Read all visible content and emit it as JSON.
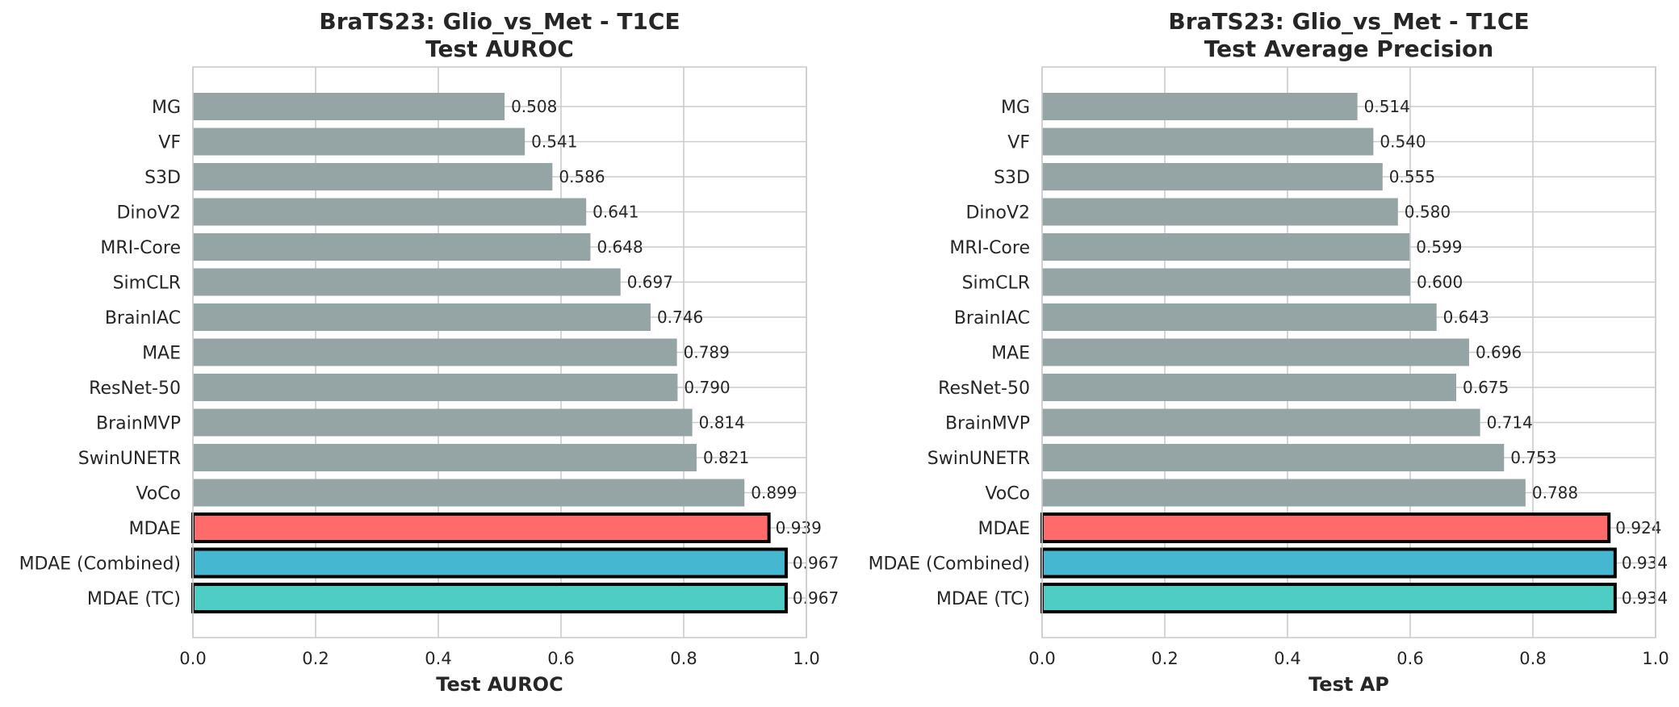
{
  "chart_data": [
    {
      "type": "bar",
      "orientation": "horizontal",
      "title": "BraTS23: Glio_vs_Met - T1CE",
      "subtitle": "Test AUROC",
      "xlabel": "Test AUROC",
      "ylabel": "",
      "xlim": [
        0.0,
        1.0
      ],
      "xticks": [
        "0.0",
        "0.2",
        "0.4",
        "0.6",
        "0.8",
        "1.0"
      ],
      "grid": true,
      "categories": [
        "MG",
        "VF",
        "S3D",
        "DinoV2",
        "MRI-Core",
        "SimCLR",
        "BrainIAC",
        "MAE",
        "ResNet-50",
        "BrainMVP",
        "SwinUNETR",
        "VoCo",
        "MDAE",
        "MDAE (Combined)",
        "MDAE (TC)"
      ],
      "values": [
        0.508,
        0.541,
        0.586,
        0.641,
        0.648,
        0.697,
        0.746,
        0.789,
        0.79,
        0.814,
        0.821,
        0.899,
        0.939,
        0.967,
        0.967
      ],
      "value_labels": [
        "0.508",
        "0.541",
        "0.586",
        "0.641",
        "0.648",
        "0.697",
        "0.746",
        "0.789",
        "0.790",
        "0.814",
        "0.821",
        "0.899",
        "0.939",
        "0.967",
        "0.967"
      ]
    },
    {
      "type": "bar",
      "orientation": "horizontal",
      "title": "BraTS23: Glio_vs_Met - T1CE",
      "subtitle": "Test Average Precision",
      "xlabel": "Test AP",
      "ylabel": "",
      "xlim": [
        0.0,
        1.0
      ],
      "xticks": [
        "0.0",
        "0.2",
        "0.4",
        "0.6",
        "0.8",
        "1.0"
      ],
      "grid": true,
      "categories": [
        "MG",
        "VF",
        "S3D",
        "DinoV2",
        "MRI-Core",
        "SimCLR",
        "BrainIAC",
        "MAE",
        "ResNet-50",
        "BrainMVP",
        "SwinUNETR",
        "VoCo",
        "MDAE",
        "MDAE (Combined)",
        "MDAE (TC)"
      ],
      "values": [
        0.514,
        0.54,
        0.555,
        0.58,
        0.599,
        0.6,
        0.643,
        0.696,
        0.675,
        0.714,
        0.753,
        0.788,
        0.924,
        0.934,
        0.934
      ],
      "value_labels": [
        "0.514",
        "0.540",
        "0.555",
        "0.580",
        "0.599",
        "0.600",
        "0.643",
        "0.696",
        "0.675",
        "0.714",
        "0.753",
        "0.788",
        "0.924",
        "0.934",
        "0.934"
      ]
    }
  ],
  "colors": {
    "baseline": "#95a5a6",
    "MDAE": "#ff6b6b",
    "MDAE (Combined)": "#45b7d1",
    "MDAE (TC)": "#4ecdc4",
    "highlight_edge": "#000000"
  }
}
